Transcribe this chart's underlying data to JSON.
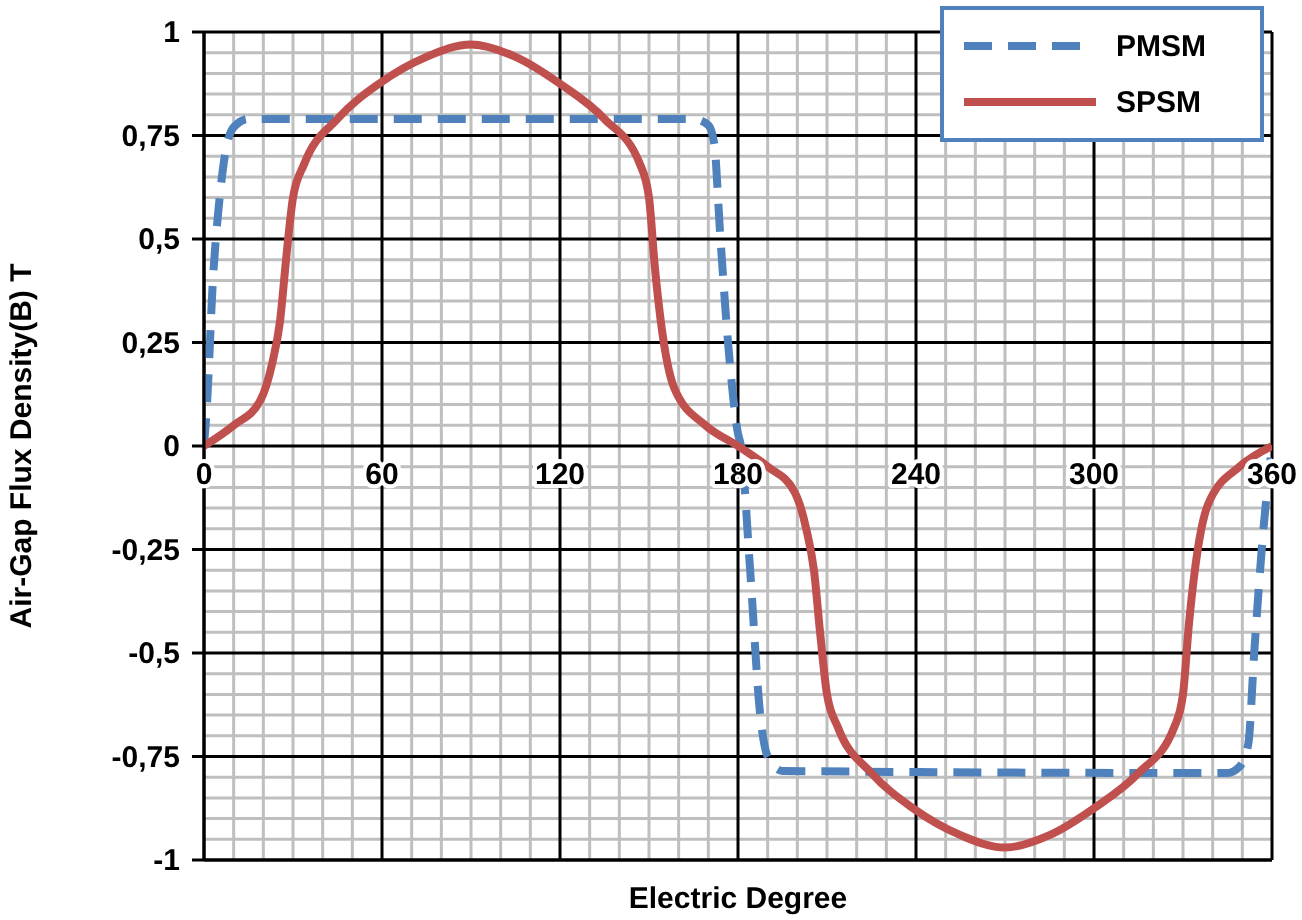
{
  "chart_data": {
    "type": "line",
    "xlabel": "Electric Degree",
    "ylabel": "Air-Gap Flux Density(B) T",
    "xlim": [
      0,
      360
    ],
    "ylim": [
      -1,
      1
    ],
    "xticks": [
      0,
      {
        "value": 10,
        "label": null
      },
      {
        "value": 20,
        "label": null
      },
      {
        "value": 30,
        "label": null
      },
      {
        "value": 40,
        "label": null
      },
      {
        "value": 50,
        "label": null
      },
      60,
      {
        "value": 70,
        "label": null
      },
      {
        "value": 80,
        "label": null
      },
      {
        "value": 90,
        "label": null
      },
      {
        "value": 100,
        "label": null
      },
      {
        "value": 110,
        "label": null
      },
      120,
      {
        "value": 130,
        "label": null
      },
      {
        "value": 140,
        "label": null
      },
      {
        "value": 150,
        "label": null
      },
      {
        "value": 160,
        "label": null
      },
      {
        "value": 170,
        "label": null
      },
      180,
      {
        "value": 190,
        "label": null
      },
      {
        "value": 200,
        "label": null
      },
      {
        "value": 210,
        "label": null
      },
      {
        "value": 220,
        "label": null
      },
      {
        "value": 230,
        "label": null
      },
      240,
      {
        "value": 250,
        "label": null
      },
      {
        "value": 260,
        "label": null
      },
      {
        "value": 270,
        "label": null
      },
      {
        "value": 280,
        "label": null
      },
      {
        "value": 290,
        "label": null
      },
      300,
      {
        "value": 310,
        "label": null
      },
      {
        "value": 320,
        "label": null
      },
      {
        "value": 330,
        "label": null
      },
      {
        "value": 340,
        "label": null
      },
      {
        "value": 350,
        "label": null
      },
      360
    ],
    "yticks": [
      {
        "value": -1,
        "label": "-1"
      },
      {
        "value": -0.95,
        "label": null
      },
      {
        "value": -0.9,
        "label": null
      },
      {
        "value": -0.85,
        "label": null
      },
      {
        "value": -0.8,
        "label": null
      },
      {
        "value": -0.75,
        "label": "-0,75"
      },
      {
        "value": -0.7,
        "label": null
      },
      {
        "value": -0.65,
        "label": null
      },
      {
        "value": -0.6,
        "label": null
      },
      {
        "value": -0.55,
        "label": null
      },
      {
        "value": -0.5,
        "label": "-0,5"
      },
      {
        "value": -0.45,
        "label": null
      },
      {
        "value": -0.4,
        "label": null
      },
      {
        "value": -0.35,
        "label": null
      },
      {
        "value": -0.3,
        "label": null
      },
      {
        "value": -0.25,
        "label": "-0,25"
      },
      {
        "value": -0.2,
        "label": null
      },
      {
        "value": -0.15,
        "label": null
      },
      {
        "value": -0.1,
        "label": null
      },
      {
        "value": -0.05,
        "label": null
      },
      {
        "value": 0,
        "label": "0"
      },
      {
        "value": 0.05,
        "label": null
      },
      {
        "value": 0.1,
        "label": null
      },
      {
        "value": 0.15,
        "label": null
      },
      {
        "value": 0.2,
        "label": null
      },
      {
        "value": 0.25,
        "label": "0,25"
      },
      {
        "value": 0.3,
        "label": null
      },
      {
        "value": 0.35,
        "label": null
      },
      {
        "value": 0.4,
        "label": null
      },
      {
        "value": 0.45,
        "label": null
      },
      {
        "value": 0.5,
        "label": "0,5"
      },
      {
        "value": 0.55,
        "label": null
      },
      {
        "value": 0.6,
        "label": null
      },
      {
        "value": 0.65,
        "label": null
      },
      {
        "value": 0.7,
        "label": null
      },
      {
        "value": 0.75,
        "label": "0,75"
      },
      {
        "value": 0.8,
        "label": null
      },
      {
        "value": 0.85,
        "label": null
      },
      {
        "value": 0.9,
        "label": null
      },
      {
        "value": 0.95,
        "label": null
      },
      {
        "value": 1,
        "label": "1"
      }
    ],
    "grid": true,
    "legend": "top right",
    "marker": "none",
    "series": [
      {
        "name": "PMSM",
        "color": "#4f81bd",
        "line_style": "dashed",
        "x": [
          0,
          1,
          3,
          5,
          7,
          10,
          15,
          165,
          170,
          172,
          174,
          177,
          180,
          181,
          184,
          187.5,
          190,
          195,
          345,
          349,
          352,
          354,
          357,
          360
        ],
        "values": [
          0,
          0.1,
          0.4,
          0.58,
          0.7,
          0.77,
          0.79,
          0.79,
          0.775,
          0.73,
          0.51,
          0.22,
          0.03,
          0,
          -0.29,
          -0.65,
          -0.75,
          -0.785,
          -0.79,
          -0.775,
          -0.72,
          -0.5,
          -0.21,
          0
        ]
      },
      {
        "name": "SPSM",
        "color": "#c0504d",
        "line_style": "solid",
        "x": [
          0,
          10,
          19,
          23,
          25.6,
          27.8,
          30,
          33.7,
          45,
          59,
          75,
          90,
          105,
          120,
          135,
          147,
          150,
          152,
          154,
          158.5,
          169,
          180,
          190,
          199,
          203,
          205.6,
          207.8,
          210,
          213.7,
          225,
          239,
          255,
          270,
          285,
          300,
          315,
          327,
          330,
          332,
          334,
          338.5,
          349,
          360
        ],
        "values": [
          0,
          0.05,
          0.11,
          0.2,
          0.3,
          0.46,
          0.6,
          0.68,
          0.79,
          0.875,
          0.94,
          0.97,
          0.94,
          0.875,
          0.79,
          0.68,
          0.6,
          0.43,
          0.3,
          0.14,
          0.05,
          0,
          -0.05,
          -0.11,
          -0.2,
          -0.3,
          -0.46,
          -0.6,
          -0.68,
          -0.79,
          -0.875,
          -0.94,
          -0.97,
          -0.94,
          -0.875,
          -0.79,
          -0.68,
          -0.6,
          -0.43,
          -0.3,
          -0.14,
          -0.05,
          0
        ]
      }
    ]
  }
}
